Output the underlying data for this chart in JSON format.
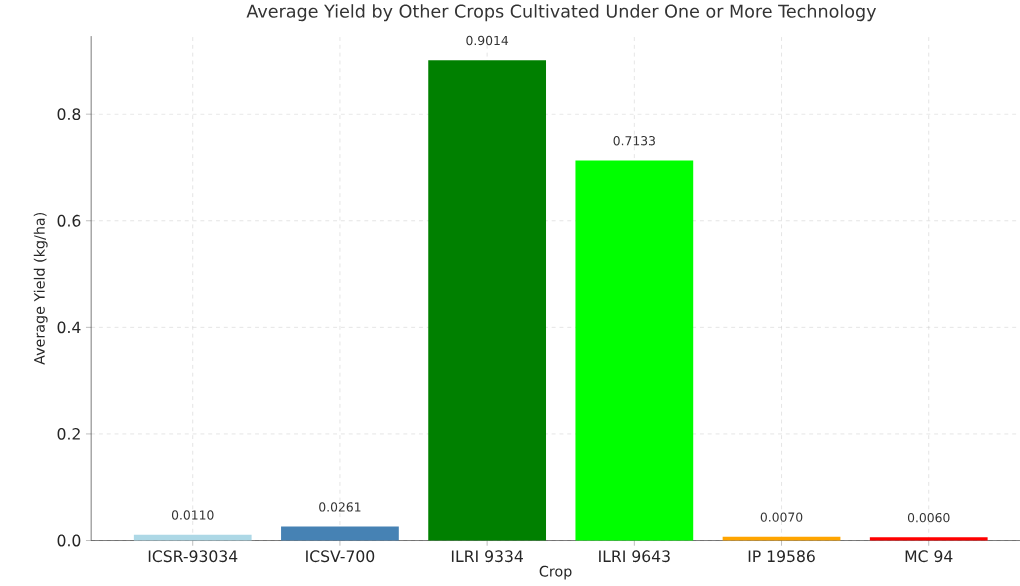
{
  "chart_data": {
    "type": "bar",
    "title": "Average Yield by Other Crops Cultivated Under One or More Technology",
    "xlabel": "Crop",
    "ylabel": "Average Yield (kg/ha)",
    "categories": [
      "ICSR-93034",
      "ICSV-700",
      "ILRI 9334",
      "ILRI 9643",
      "IP 19586",
      "MC 94"
    ],
    "values": [
      0.011,
      0.0261,
      0.9014,
      0.7133,
      0.007,
      0.006
    ],
    "value_labels": [
      "0.0110",
      "0.0261",
      "0.9014",
      "0.7133",
      "0.0070",
      "0.0060"
    ],
    "colors": [
      "#add8e6",
      "#4682b4",
      "#008000",
      "#00ff00",
      "#ffa500",
      "#ff0000"
    ],
    "ylim": [
      0,
      0.9465
    ],
    "yticks": [
      {
        "value": 0,
        "label": "0.0"
      },
      0.2,
      0.4,
      0.6,
      0.8
    ],
    "grid": true
  }
}
